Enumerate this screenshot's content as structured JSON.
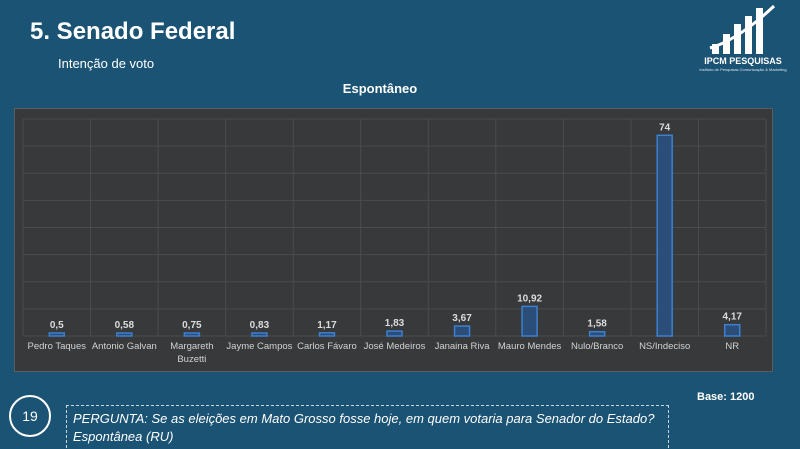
{
  "header": {
    "title": "5. Senado Federal",
    "subtitle": "Intenção de voto"
  },
  "logo": {
    "name": "IPCM PESQUISAS",
    "tagline": "Instituto de Pesquisas Comunicação & Marketing"
  },
  "chart_data": {
    "type": "bar",
    "title": "Espontâneo",
    "xlabel": "",
    "ylabel": "",
    "ylim": [
      0,
      80
    ],
    "grid": true,
    "legend": "none",
    "categories": [
      "Pedro Taques",
      "Antonio Galvan",
      "Margareth Buzetti",
      "Jayme Campos",
      "Carlos Fávaro",
      "José Medeiros",
      "Janaina Riva",
      "Mauro Mendes",
      "Nulo/Branco",
      "NS/Indeciso",
      "NR"
    ],
    "category_lines": [
      [
        "Pedro Taques"
      ],
      [
        "Antonio Galvan"
      ],
      [
        "Margareth",
        "Buzetti"
      ],
      [
        "Jayme Campos"
      ],
      [
        "Carlos Fávaro"
      ],
      [
        "José Medeiros"
      ],
      [
        "Janaina Riva"
      ],
      [
        "Mauro Mendes"
      ],
      [
        "Nulo/Branco"
      ],
      [
        "NS/Indeciso"
      ],
      [
        "NR"
      ]
    ],
    "values": [
      0.5,
      0.58,
      0.75,
      0.83,
      1.17,
      1.83,
      3.67,
      10.92,
      1.58,
      74,
      4.17
    ],
    "data_labels": [
      "0,5",
      "0,58",
      "0,75",
      "0,83",
      "1,17",
      "1,83",
      "3,67",
      "10,92",
      "1,58",
      "74",
      "4,17"
    ],
    "colors": {
      "bar_fill": "#2a4e78",
      "bar_border": "#3d7fd0",
      "plot_background": "#37393b",
      "grid": "#4a4c4e",
      "label": "#d2d2d2",
      "value_label": "#dcdcdc"
    }
  },
  "footer": {
    "base": "Base: 1200",
    "page_number": "19",
    "question": "PERGUNTA: Se as eleições em Mato Grosso fosse hoje, em quem votaria para Senador do Estado? Espontânea (RU)"
  }
}
